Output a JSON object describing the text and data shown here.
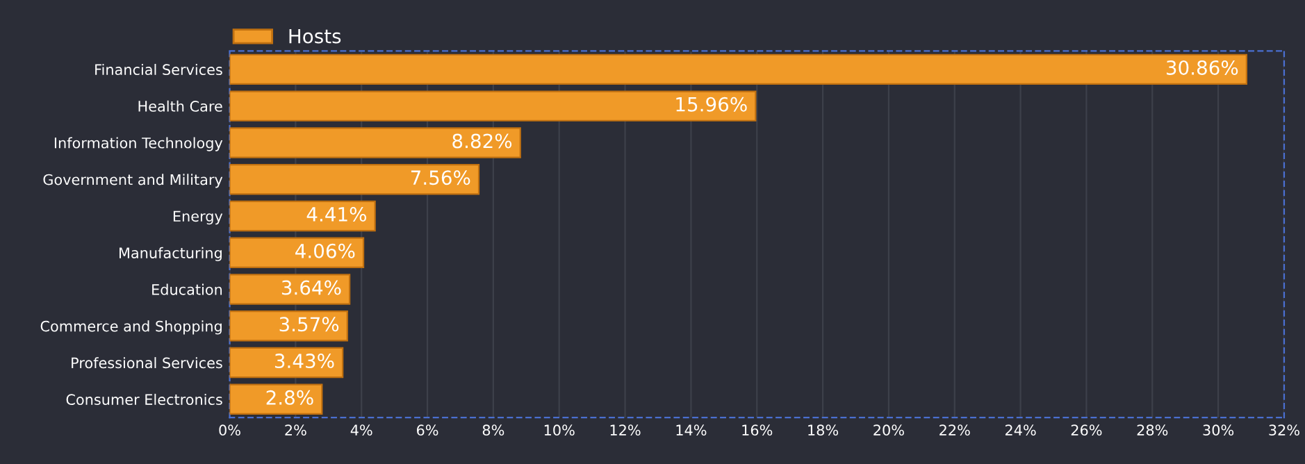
{
  "chart_data": {
    "type": "bar",
    "orientation": "horizontal",
    "categories": [
      "Financial Services",
      "Health Care",
      "Information Technology",
      "Government and Military",
      "Energy",
      "Manufacturing",
      "Education",
      "Commerce and Shopping",
      "Professional Services",
      "Consumer Electronics"
    ],
    "series": [
      {
        "name": "Hosts",
        "color": "#f09a28",
        "values": [
          30.86,
          15.96,
          8.82,
          7.56,
          4.41,
          4.06,
          3.64,
          3.57,
          3.43,
          2.8
        ],
        "value_labels": [
          "30.86%",
          "15.96%",
          "8.82%",
          "7.56%",
          "4.41%",
          "4.06%",
          "3.64%",
          "3.57%",
          "3.43%",
          "2.8%"
        ]
      }
    ],
    "xlim": [
      0,
      32
    ],
    "xticks": [
      {
        "value": 0,
        "label": "0%"
      },
      {
        "value": 2,
        "label": "2%"
      },
      {
        "value": 4,
        "label": "4%"
      },
      {
        "value": 6,
        "label": "6%"
      },
      {
        "value": 8,
        "label": "8%"
      },
      {
        "value": 10,
        "label": "10%"
      },
      {
        "value": 12,
        "label": "12%"
      },
      {
        "value": 14,
        "label": "14%"
      },
      {
        "value": 16,
        "label": "16%"
      },
      {
        "value": 18,
        "label": "18%"
      },
      {
        "value": 20,
        "label": "20%"
      },
      {
        "value": 22,
        "label": "22%"
      },
      {
        "value": 24,
        "label": "24%"
      },
      {
        "value": 26,
        "label": "26%"
      },
      {
        "value": 28,
        "label": "28%"
      },
      {
        "value": 30,
        "label": "30%"
      },
      {
        "value": 32,
        "label": "32%"
      }
    ],
    "grid": "x",
    "legend": "top left"
  }
}
